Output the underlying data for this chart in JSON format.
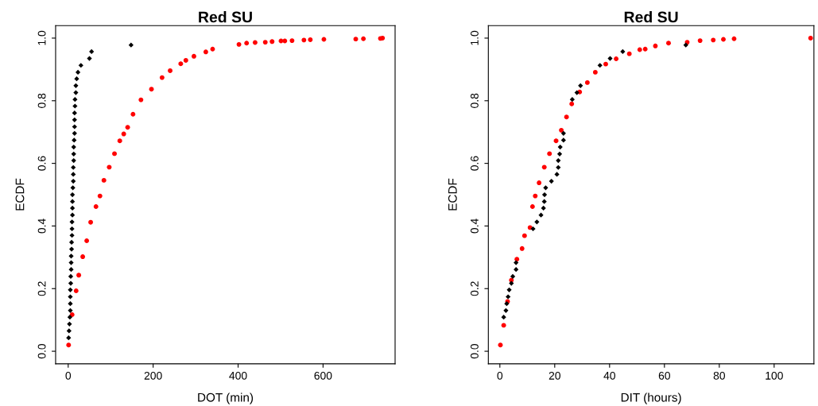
{
  "chart_data": [
    {
      "type": "scatter",
      "title": "Red SU",
      "xlabel": "DOT (min)",
      "ylabel": "ECDF",
      "xlim": [
        -29.6,
        769.6
      ],
      "ylim": [
        -0.04,
        1.04
      ],
      "xticks": [
        0,
        200,
        400,
        600
      ],
      "yticks": [
        {
          "value": 0,
          "label": "0.0"
        },
        {
          "value": 0.2,
          "label": "0.2"
        },
        {
          "value": 0.4,
          "label": "0.4"
        },
        {
          "value": 0.6,
          "label": "0.6"
        },
        {
          "value": 0.8,
          "label": "0.8"
        },
        {
          "value": 1,
          "label": "1.0"
        }
      ],
      "grid": false,
      "series": [
        {
          "color": "#ff0000",
          "marker": "circle",
          "x": [
            1,
            9.3,
            18.7,
            24.9,
            34.2,
            43.6,
            52.9,
            65.4,
            74.8,
            84.1,
            96.6,
            109,
            121.5,
            130.8,
            140,
            152.6,
            171.3,
            196,
            221,
            240,
            265,
            277,
            296,
            324,
            340,
            402,
            420,
            440,
            464,
            480,
            501,
            510,
            527,
            555,
            570,
            602,
            677,
            695,
            735,
            740
          ],
          "values": [
            0.02,
            0.117,
            0.193,
            0.243,
            0.302,
            0.353,
            0.412,
            0.462,
            0.496,
            0.546,
            0.588,
            0.631,
            0.672,
            0.694,
            0.715,
            0.757,
            0.803,
            0.837,
            0.874,
            0.896,
            0.918,
            0.929,
            0.942,
            0.956,
            0.965,
            0.98,
            0.984,
            0.986,
            0.987,
            0.989,
            0.991,
            0.991,
            0.992,
            0.994,
            0.995,
            0.996,
            0.997,
            0.998,
            0.999,
            1.0
          ]
        },
        {
          "color": "#000000",
          "marker": "diamond",
          "x": [
            1,
            2,
            3,
            4,
            5,
            5,
            5,
            5,
            6,
            6,
            7,
            7,
            7,
            8,
            8,
            9,
            9,
            9,
            10,
            10,
            10,
            10,
            11,
            12,
            12,
            12,
            13,
            13,
            13,
            14,
            15,
            15,
            15,
            15,
            16,
            16,
            18,
            18,
            20,
            23,
            30,
            50,
            55,
            148
          ],
          "values": [
            0.043,
            0.065,
            0.087,
            0.109,
            0.13,
            0.152,
            0.174,
            0.196,
            0.217,
            0.239,
            0.261,
            0.283,
            0.304,
            0.326,
            0.348,
            0.37,
            0.391,
            0.413,
            0.435,
            0.457,
            0.478,
            0.5,
            0.522,
            0.543,
            0.565,
            0.587,
            0.609,
            0.63,
            0.652,
            0.674,
            0.696,
            0.717,
            0.739,
            0.761,
            0.783,
            0.804,
            0.826,
            0.848,
            0.87,
            0.891,
            0.913,
            0.935,
            0.957,
            0.978
          ]
        }
      ]
    },
    {
      "type": "scatter",
      "title": "Red SU",
      "xlabel": "DIT (hours)",
      "ylabel": "ECDF",
      "xlim": [
        -4.2,
        114.5
      ],
      "ylim": [
        -0.04,
        1.04
      ],
      "xticks": [
        0,
        20,
        40,
        60,
        80,
        100
      ],
      "yticks": [
        {
          "value": 0,
          "label": "0.0"
        },
        {
          "value": 0.2,
          "label": "0.2"
        },
        {
          "value": 0.4,
          "label": "0.4"
        },
        {
          "value": 0.6,
          "label": "0.6"
        },
        {
          "value": 0.8,
          "label": "0.8"
        },
        {
          "value": 1,
          "label": "1.0"
        }
      ],
      "grid": false,
      "series": [
        {
          "color": "#ff0000",
          "marker": "circle",
          "x": [
            0.2,
            1.4,
            2.8,
            4.2,
            6.2,
            8.1,
            9.0,
            11.0,
            11.9,
            12.9,
            14.3,
            16.2,
            18.1,
            20.5,
            22.4,
            24.3,
            26.2,
            29.1,
            31.9,
            34.8,
            38.6,
            42.4,
            47.2,
            51.0,
            53,
            56.7,
            61.5,
            68.3,
            73,
            77.8,
            81.5,
            85.4,
            113.3
          ],
          "values": [
            0.02,
            0.083,
            0.159,
            0.227,
            0.294,
            0.328,
            0.369,
            0.395,
            0.462,
            0.496,
            0.538,
            0.588,
            0.631,
            0.672,
            0.706,
            0.748,
            0.79,
            0.828,
            0.858,
            0.891,
            0.917,
            0.934,
            0.95,
            0.963,
            0.965,
            0.975,
            0.984,
            0.987,
            0.992,
            0.994,
            0.996,
            0.998,
            1.0
          ]
        },
        {
          "color": "#000000",
          "marker": "diamond",
          "x": [
            1.4,
            2.2,
            2.5,
            3.0,
            3.4,
            4.2,
            4.7,
            5.9,
            5.9,
            12.1,
            13.5,
            15.0,
            15.9,
            16.2,
            16.3,
            16.7,
            18.8,
            20.8,
            21.3,
            21.3,
            21.8,
            22.0,
            23.2,
            23.2,
            26.4,
            28.1,
            29.4,
            36.5,
            40.2,
            44.8,
            67.8
          ],
          "values": [
            0.109,
            0.13,
            0.152,
            0.174,
            0.196,
            0.217,
            0.239,
            0.261,
            0.283,
            0.391,
            0.413,
            0.435,
            0.457,
            0.478,
            0.5,
            0.522,
            0.543,
            0.565,
            0.587,
            0.609,
            0.63,
            0.652,
            0.674,
            0.696,
            0.804,
            0.826,
            0.848,
            0.913,
            0.935,
            0.957,
            0.978
          ]
        }
      ]
    }
  ]
}
